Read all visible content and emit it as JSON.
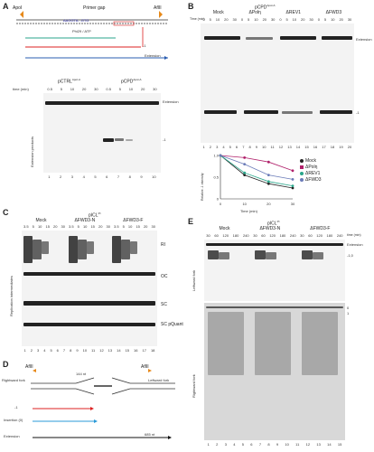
{
  "panelA": {
    "letter": "A",
    "site_left": "ApoI",
    "site_right": "AflII",
    "primer": "Primer gap",
    "seq_label": "AAGGTA...GTG",
    "product1": "+1",
    "product2": "-1",
    "extension": "Extension",
    "atp_label": "Phi29 / ATP",
    "gel_header_left": "pCTRL",
    "gel_header_left_sup": "ApoI-A",
    "gel_header_right": "pCPD",
    "gel_header_right_sup": "ApoI-A",
    "time_label": "time (min)",
    "times": [
      "0.5",
      "5",
      "10",
      "20",
      "30",
      "0.5",
      "5",
      "10",
      "20",
      "30"
    ],
    "band_extension": "Extension",
    "band_minus1": "-1",
    "yaxis": "Extension products",
    "lanes": [
      "1",
      "2",
      "3",
      "4",
      "5",
      "6",
      "7",
      "8",
      "9",
      "10"
    ]
  },
  "panelB": {
    "letter": "B",
    "title": "pCPD",
    "title_sup": "ApoI-A",
    "groups": [
      "Mock",
      "ΔPolη",
      "ΔREV1",
      "ΔFWD3"
    ],
    "time_label": "Time (min)",
    "times": [
      "0",
      "5",
      "10",
      "20",
      "30",
      "0",
      "5",
      "10",
      "20",
      "30",
      "0",
      "5",
      "10",
      "20",
      "30",
      "0",
      "5",
      "10",
      "20",
      "30"
    ],
    "band_extension": "Extension",
    "band_minus1": "-1",
    "lanes": [
      "1",
      "2",
      "3",
      "4",
      "5",
      "6",
      "7",
      "8",
      "9",
      "10",
      "11",
      "12",
      "13",
      "14",
      "15",
      "16",
      "17",
      "18",
      "19",
      "20"
    ]
  },
  "panelC": {
    "letter": "C",
    "title": "pICL",
    "title_sup": "Pt",
    "groups": [
      "Mock",
      "ΔFWD3-N",
      "ΔFWD3-F"
    ],
    "times": [
      "3.5",
      "5",
      "10",
      "15",
      "20",
      "30",
      "3.5",
      "5",
      "10",
      "15",
      "20",
      "30",
      "3.5",
      "5",
      "10",
      "15",
      "20",
      "30"
    ],
    "band_labels": [
      "RI",
      "OC",
      "SC",
      "SC pQuant"
    ],
    "yaxis": "Replication intermediates",
    "lanes": [
      "1",
      "2",
      "3",
      "4",
      "5",
      "6",
      "7",
      "8",
      "9",
      "10",
      "11",
      "12",
      "13",
      "14",
      "15",
      "16",
      "17",
      "18"
    ]
  },
  "panelD": {
    "letter": "D",
    "site_left": "AflII",
    "site_right": "AflII",
    "distance": "144 nt",
    "left_fork": "Rightward fork",
    "right_fork": "Leftward fork",
    "product_minus1": "-1",
    "product_insertion": "Insertion (0)",
    "product_extension": "Extension",
    "extension_len": "685 nt"
  },
  "panelE": {
    "letter": "E",
    "title": "pICL",
    "title_sup": "Pt",
    "groups": [
      "Mock",
      "ΔFWD3-N",
      "ΔFWD3-F"
    ],
    "time_label": "time (min)",
    "times": [
      "30",
      "60",
      "120",
      "180",
      "240",
      "30",
      "60",
      "120",
      "180",
      "240",
      "30",
      "60",
      "120",
      "180",
      "240"
    ],
    "band_labels": [
      "Extension",
      "-1,0",
      "0",
      "1"
    ],
    "left_label_top": "Leftward fork",
    "left_label_bottom": "Rightward fork",
    "lanes": [
      "1",
      "2",
      "3",
      "4",
      "5",
      "6",
      "7",
      "8",
      "9",
      "10",
      "11",
      "12",
      "13",
      "14",
      "15"
    ]
  },
  "chart_data": {
    "type": "line",
    "x": [
      0,
      10,
      20,
      30
    ],
    "xlabel": "Time (min)",
    "ylabel": "Relative -1 intensity",
    "xlim": [
      0,
      30
    ],
    "ylim": [
      0,
      1.0
    ],
    "yticks": [
      "0",
      "0.5",
      "1.0"
    ],
    "xticks": [
      "0",
      "10",
      "20",
      "30"
    ],
    "legend_position": "right",
    "series": [
      {
        "name": "Mock",
        "color": "#222222",
        "values": [
          1.0,
          0.55,
          0.35,
          0.25
        ]
      },
      {
        "name": "ΔPolη",
        "color": "#b0206a",
        "values": [
          1.0,
          0.95,
          0.85,
          0.65
        ]
      },
      {
        "name": "ΔREV1",
        "color": "#2aa68b",
        "values": [
          1.0,
          0.6,
          0.4,
          0.3
        ]
      },
      {
        "name": "ΔFWD3",
        "color": "#6a7bb8",
        "values": [
          1.0,
          0.8,
          0.55,
          0.45
        ]
      }
    ]
  }
}
